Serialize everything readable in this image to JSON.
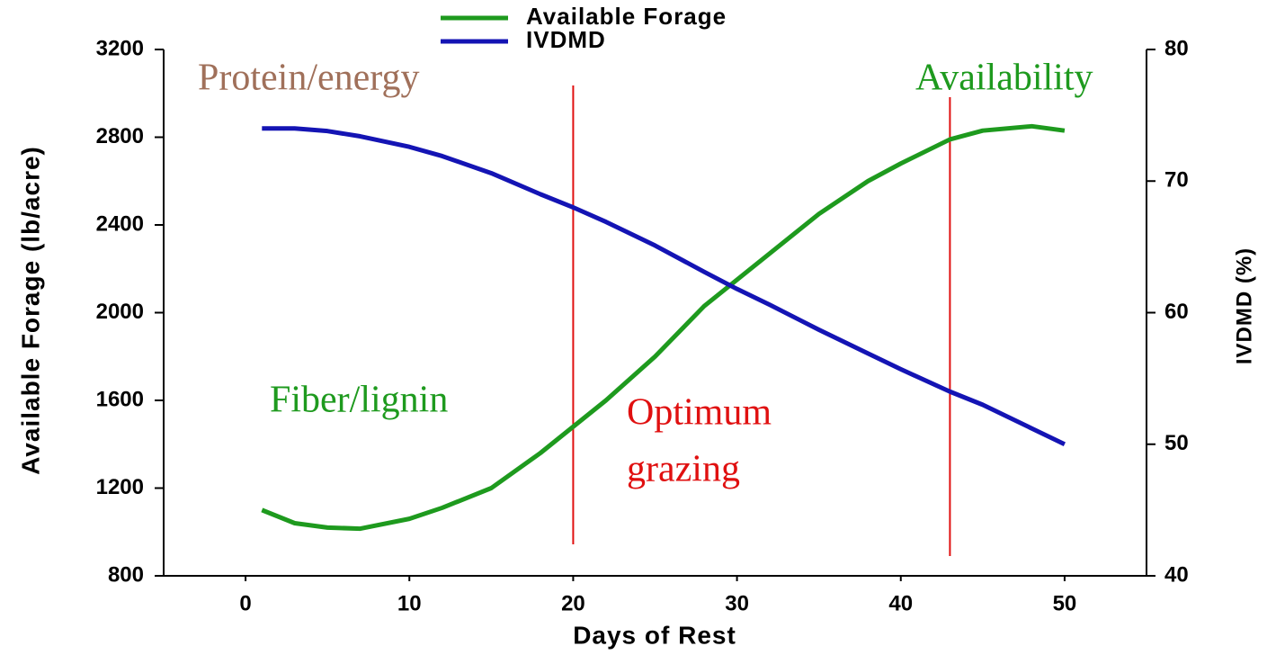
{
  "chart_data": {
    "type": "line",
    "xlabel": "Days of Rest",
    "ylabel": "Available Forage (lb/acre)",
    "y2label": "IVDMD (%)",
    "x": [
      1,
      3,
      5,
      7,
      10,
      12,
      15,
      18,
      20,
      22,
      25,
      28,
      30,
      32,
      35,
      38,
      40,
      43,
      45,
      48,
      50
    ],
    "series": [
      {
        "name": "Available Forage",
        "color": "#1e9a1e",
        "values": [
          1100,
          1040,
          1020,
          1015,
          1060,
          1110,
          1200,
          1360,
          1480,
          1600,
          1800,
          2030,
          2150,
          2270,
          2450,
          2600,
          2680,
          2790,
          2830,
          2850,
          2830
        ]
      },
      {
        "name": "IVDMD",
        "color": "#1414b4",
        "axis": "y2",
        "values": [
          74,
          74,
          73.8,
          73.4,
          72.6,
          71.9,
          70.6,
          69,
          68,
          66.9,
          65.1,
          63.1,
          61.8,
          60.6,
          58.7,
          56.9,
          55.7,
          54,
          53,
          51.2,
          50
        ]
      }
    ],
    "xlim": [
      -5,
      55
    ],
    "xticks": [
      0,
      10,
      20,
      30,
      40,
      50
    ],
    "ylim": [
      800,
      3200
    ],
    "yticks": [
      800,
      1200,
      1600,
      2000,
      2400,
      2800,
      3200
    ],
    "y2lim": [
      40,
      80
    ],
    "y2ticks": [
      40,
      50,
      60,
      70,
      80
    ],
    "legend": "top-center",
    "reference_lines": [
      {
        "x": 20,
        "color": "#e01010"
      },
      {
        "x": 43,
        "color": "#e01010"
      }
    ],
    "annotations": [
      {
        "text": "Protein/energy",
        "color": "#a0705a"
      },
      {
        "text": "Availability",
        "color": "#1e9a1e"
      },
      {
        "text": "Fiber/lignin",
        "color": "#1e9a1e"
      },
      {
        "text": "Optimum",
        "color": "#e01010"
      },
      {
        "text": "grazing",
        "color": "#e01010"
      }
    ]
  }
}
